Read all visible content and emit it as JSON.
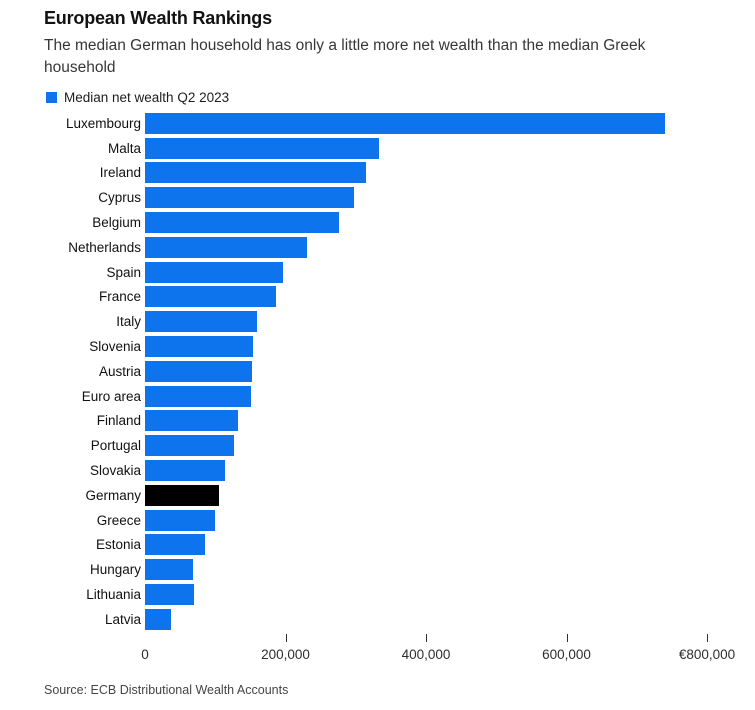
{
  "header": {
    "title": "European Wealth Rankings",
    "subtitle": "The median German household has only a little more net wealth than the median Greek household"
  },
  "legend": {
    "label": "Median net wealth Q2 2023",
    "swatch_color": "#0d74ee"
  },
  "chart_data": {
    "type": "bar",
    "orientation": "horizontal",
    "title": "European Wealth Rankings",
    "subtitle": "The median German household has only a little more net wealth than the median Greek household",
    "legend": [
      "Median net wealth Q2 2023"
    ],
    "legend_position": "top-left",
    "unit": "EUR",
    "grid": false,
    "categories": [
      "Luxembourg",
      "Malta",
      "Ireland",
      "Cyprus",
      "Belgium",
      "Netherlands",
      "Spain",
      "France",
      "Italy",
      "Slovenia",
      "Austria",
      "Euro area",
      "Finland",
      "Portugal",
      "Slovakia",
      "Germany",
      "Greece",
      "Estonia",
      "Hungary",
      "Lithuania",
      "Latvia"
    ],
    "values": [
      740000,
      333000,
      315000,
      297000,
      276000,
      231000,
      197000,
      186000,
      160000,
      154000,
      153000,
      151000,
      133000,
      127000,
      114000,
      106000,
      100000,
      86000,
      68000,
      70000,
      37000
    ],
    "bar_colors": {
      "default": "#0d74ee",
      "highlight": "#000000"
    },
    "highlight_category": "Germany",
    "xlim": [
      0,
      800000
    ],
    "x_ticks": [
      {
        "label": "0",
        "value": 0
      },
      {
        "label": "200,000",
        "value": 200000
      },
      {
        "label": "400,000",
        "value": 400000
      },
      {
        "label": "600,000",
        "value": 600000
      },
      {
        "label": "€800,000",
        "value": 800000
      }
    ]
  },
  "source": "Source: ECB Distributional Wealth Accounts"
}
